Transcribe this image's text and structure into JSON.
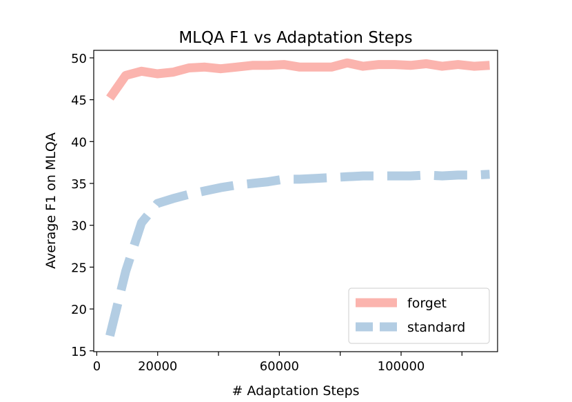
{
  "chart_data": {
    "type": "line",
    "title": "MLQA F1 vs Adaptation Steps",
    "xlabel": "# Adaptation Steps",
    "ylabel": "Average F1 on MLQA",
    "xlim": [
      -1000,
      131700
    ],
    "ylim": [
      14.9,
      50.9
    ],
    "xticks": [
      0,
      20000,
      40000,
      60000,
      80000,
      100000,
      120000
    ],
    "xtick_labels": [
      "0",
      "20000",
      "",
      "60000",
      "",
      "100000",
      ""
    ],
    "yticks": [
      15,
      20,
      25,
      30,
      35,
      40,
      45,
      50
    ],
    "ytick_labels": [
      "15",
      "20",
      "25",
      "30",
      "35",
      "40",
      "45",
      "50"
    ],
    "grid": false,
    "legend_position": "lower-right",
    "x": [
      4300,
      9500,
      14700,
      19900,
      25100,
      30300,
      35500,
      40700,
      45900,
      51100,
      56300,
      61500,
      66700,
      71900,
      77100,
      82300,
      87500,
      92700,
      97900,
      103100,
      108300,
      113500,
      118700,
      123900,
      129100
    ],
    "series": [
      {
        "name": "forget",
        "color": "#fbb4ae",
        "style": "solid",
        "values": [
          45.2,
          47.9,
          48.4,
          48.1,
          48.3,
          48.8,
          48.9,
          48.7,
          48.9,
          49.1,
          49.1,
          49.2,
          48.9,
          48.9,
          48.9,
          49.4,
          49.0,
          49.2,
          49.2,
          49.1,
          49.3,
          49.0,
          49.2,
          49.0,
          49.1
        ]
      },
      {
        "name": "standard",
        "color": "#b3cde3",
        "style": "dashed",
        "values": [
          16.8,
          24.5,
          30.3,
          32.6,
          33.2,
          33.7,
          34.1,
          34.5,
          34.8,
          35.0,
          35.2,
          35.5,
          35.5,
          35.6,
          35.7,
          35.8,
          35.9,
          35.9,
          35.9,
          35.9,
          36.0,
          35.9,
          36.0,
          36.0,
          36.1
        ]
      }
    ]
  }
}
